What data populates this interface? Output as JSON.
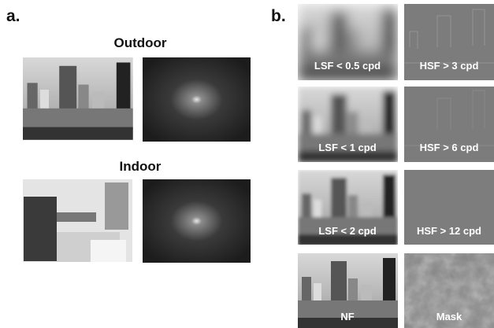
{
  "panel_a": {
    "label": "a.",
    "rows": [
      {
        "title": "Outdoor"
      },
      {
        "title": "Indoor"
      }
    ]
  },
  "panel_b": {
    "label": "b.",
    "tiles": [
      [
        "LSF < 0.5 cpd",
        "HSF > 3 cpd"
      ],
      [
        "LSF < 1 cpd",
        "HSF > 6 cpd"
      ],
      [
        "LSF < 2 cpd",
        "HSF > 12 cpd"
      ],
      [
        "NF",
        "Mask"
      ]
    ]
  }
}
